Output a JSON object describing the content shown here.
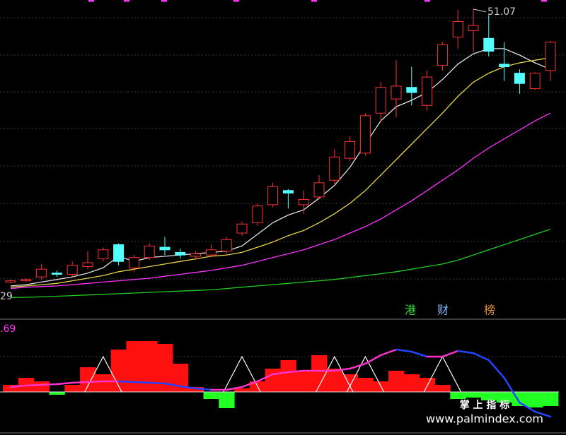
{
  "chart_data": [
    {
      "type": "candlestick",
      "open": [
        29.9,
        30.0,
        30.3,
        30.6,
        30.5,
        31.1,
        31.7,
        32.8,
        31.0,
        31.8,
        32.6,
        32.2,
        31.9,
        32.0,
        32.3,
        33.7,
        34.5,
        35.9,
        37.0,
        35.9,
        36.5,
        37.8,
        39.5,
        39.9,
        43.0,
        44.1,
        45.0,
        43.6,
        46.7,
        48.9,
        49.4,
        48.8,
        46.8,
        46.1,
        44.9,
        46.3
      ],
      "close": [
        30.0,
        30.1,
        30.9,
        30.5,
        31.2,
        31.4,
        32.4,
        31.5,
        31.8,
        32.7,
        32.4,
        32.0,
        32.1,
        32.4,
        33.2,
        34.4,
        35.8,
        37.3,
        36.8,
        36.3,
        37.6,
        39.6,
        40.8,
        42.8,
        45.0,
        45.1,
        44.6,
        45.8,
        48.3,
        50.1,
        49.8,
        47.8,
        46.6,
        45.3,
        46.1,
        48.5
      ],
      "high": [
        30.1,
        30.2,
        31.3,
        30.8,
        31.5,
        32.3,
        32.6,
        32.9,
        32.0,
        32.9,
        33.4,
        32.5,
        32.3,
        32.8,
        33.4,
        34.6,
        36.0,
        37.6,
        37.1,
        37.0,
        38.2,
        40.2,
        41.2,
        43.0,
        45.4,
        47.1,
        46.6,
        46.3,
        48.5,
        51.0,
        51.07,
        50.6,
        48.5,
        46.4,
        46.2,
        48.6
      ],
      "low": [
        29.8,
        29.9,
        30.1,
        30.3,
        30.3,
        30.9,
        31.5,
        31.2,
        30.7,
        31.6,
        32.0,
        31.7,
        31.6,
        31.9,
        32.1,
        33.5,
        34.3,
        35.7,
        35.6,
        35.2,
        36.3,
        37.5,
        39.3,
        39.7,
        42.3,
        42.7,
        43.6,
        43.2,
        46.3,
        48.0,
        47.7,
        47.4,
        45.5,
        44.5,
        44.8,
        45.5
      ],
      "up_color": "#ff3232",
      "down_color": "#54ffff",
      "series": [
        {
          "name": "MA5",
          "color": "#e0e0e0",
          "values": [
            29.6,
            29.7,
            29.9,
            30.1,
            30.3,
            30.6,
            31.0,
            31.9,
            31.5,
            31.8,
            31.9,
            32.0,
            32.1,
            32.2,
            32.3,
            32.7,
            33.6,
            34.5,
            35.1,
            35.5,
            36.4,
            37.4,
            38.8,
            40.6,
            42.4,
            43.5,
            44.0,
            44.6,
            45.6,
            46.8,
            47.6,
            48.0,
            48.0,
            47.5,
            46.9,
            46.4
          ]
        },
        {
          "name": "MA10",
          "color": "#e8d44a",
          "values": [
            29.5,
            29.6,
            29.7,
            29.8,
            30.0,
            30.2,
            30.4,
            30.7,
            30.9,
            31.1,
            31.3,
            31.5,
            31.7,
            31.9,
            32.0,
            32.2,
            32.6,
            33.0,
            33.5,
            33.9,
            34.5,
            35.2,
            36.0,
            37.0,
            38.2,
            39.4,
            40.6,
            41.8,
            43.0,
            44.3,
            45.4,
            46.1,
            46.6,
            46.9,
            47.1,
            47.3
          ]
        },
        {
          "name": "MA20",
          "color": "#ff33ff",
          "values": [
            29.4,
            29.5,
            29.55,
            29.6,
            29.7,
            29.8,
            29.9,
            30.0,
            30.1,
            30.2,
            30.35,
            30.5,
            30.65,
            30.8,
            31.0,
            31.2,
            31.5,
            31.8,
            32.1,
            32.4,
            32.8,
            33.2,
            33.7,
            34.2,
            34.8,
            35.5,
            36.2,
            37.0,
            37.8,
            38.6,
            39.5,
            40.3,
            41.0,
            41.7,
            42.4,
            43.0
          ]
        },
        {
          "name": "MA60",
          "color": "#22cc22",
          "values": [
            28.7,
            28.72,
            28.75,
            28.8,
            28.85,
            28.9,
            28.95,
            29.0,
            29.05,
            29.1,
            29.15,
            29.2,
            29.25,
            29.3,
            29.4,
            29.5,
            29.6,
            29.7,
            29.8,
            29.9,
            30.0,
            30.1,
            30.25,
            30.4,
            30.55,
            30.7,
            30.9,
            31.1,
            31.3,
            31.6,
            32.0,
            32.4,
            32.8,
            33.2,
            33.6,
            34.0
          ]
        }
      ],
      "ylim": [
        28.5,
        51.5
      ],
      "low_label": "29",
      "tags": [
        {
          "text": "港",
          "color": "#33dd33"
        },
        {
          "text": "财",
          "color": "#88bbff"
        },
        {
          "text": "榜",
          "color": "#e09040"
        }
      ]
    },
    {
      "type": "histogram-indicator",
      "label": ".69",
      "values": [
        10,
        20,
        15,
        -4,
        10,
        35,
        25,
        60,
        72,
        72,
        68,
        40,
        7,
        -10,
        -23,
        5,
        15,
        33,
        45,
        30,
        52,
        33,
        25,
        20,
        15,
        30,
        25,
        20,
        10,
        -10,
        -8,
        -12,
        -15,
        -20,
        -22,
        -20
      ],
      "up_color": "#ff1010",
      "down_color": "#22ff22",
      "line": {
        "color": "#ff33cc",
        "down_color": "#2244ff",
        "values": [
          7,
          9,
          10,
          11,
          13,
          14,
          15,
          15,
          14,
          13,
          12,
          8,
          5,
          3,
          3,
          7,
          15,
          25,
          28,
          30,
          30,
          30,
          33,
          40,
          52,
          60,
          57,
          50,
          50,
          58,
          55,
          45,
          20,
          -15,
          -28,
          -35
        ]
      },
      "signals": {
        "indices": [
          6,
          15,
          21,
          23,
          28
        ],
        "value": 50,
        "color": "#ffffff"
      },
      "ylim": [
        -45,
        95
      ],
      "watermark": "掌 上 指 标",
      "site": "www.palmindex.com"
    }
  ]
}
